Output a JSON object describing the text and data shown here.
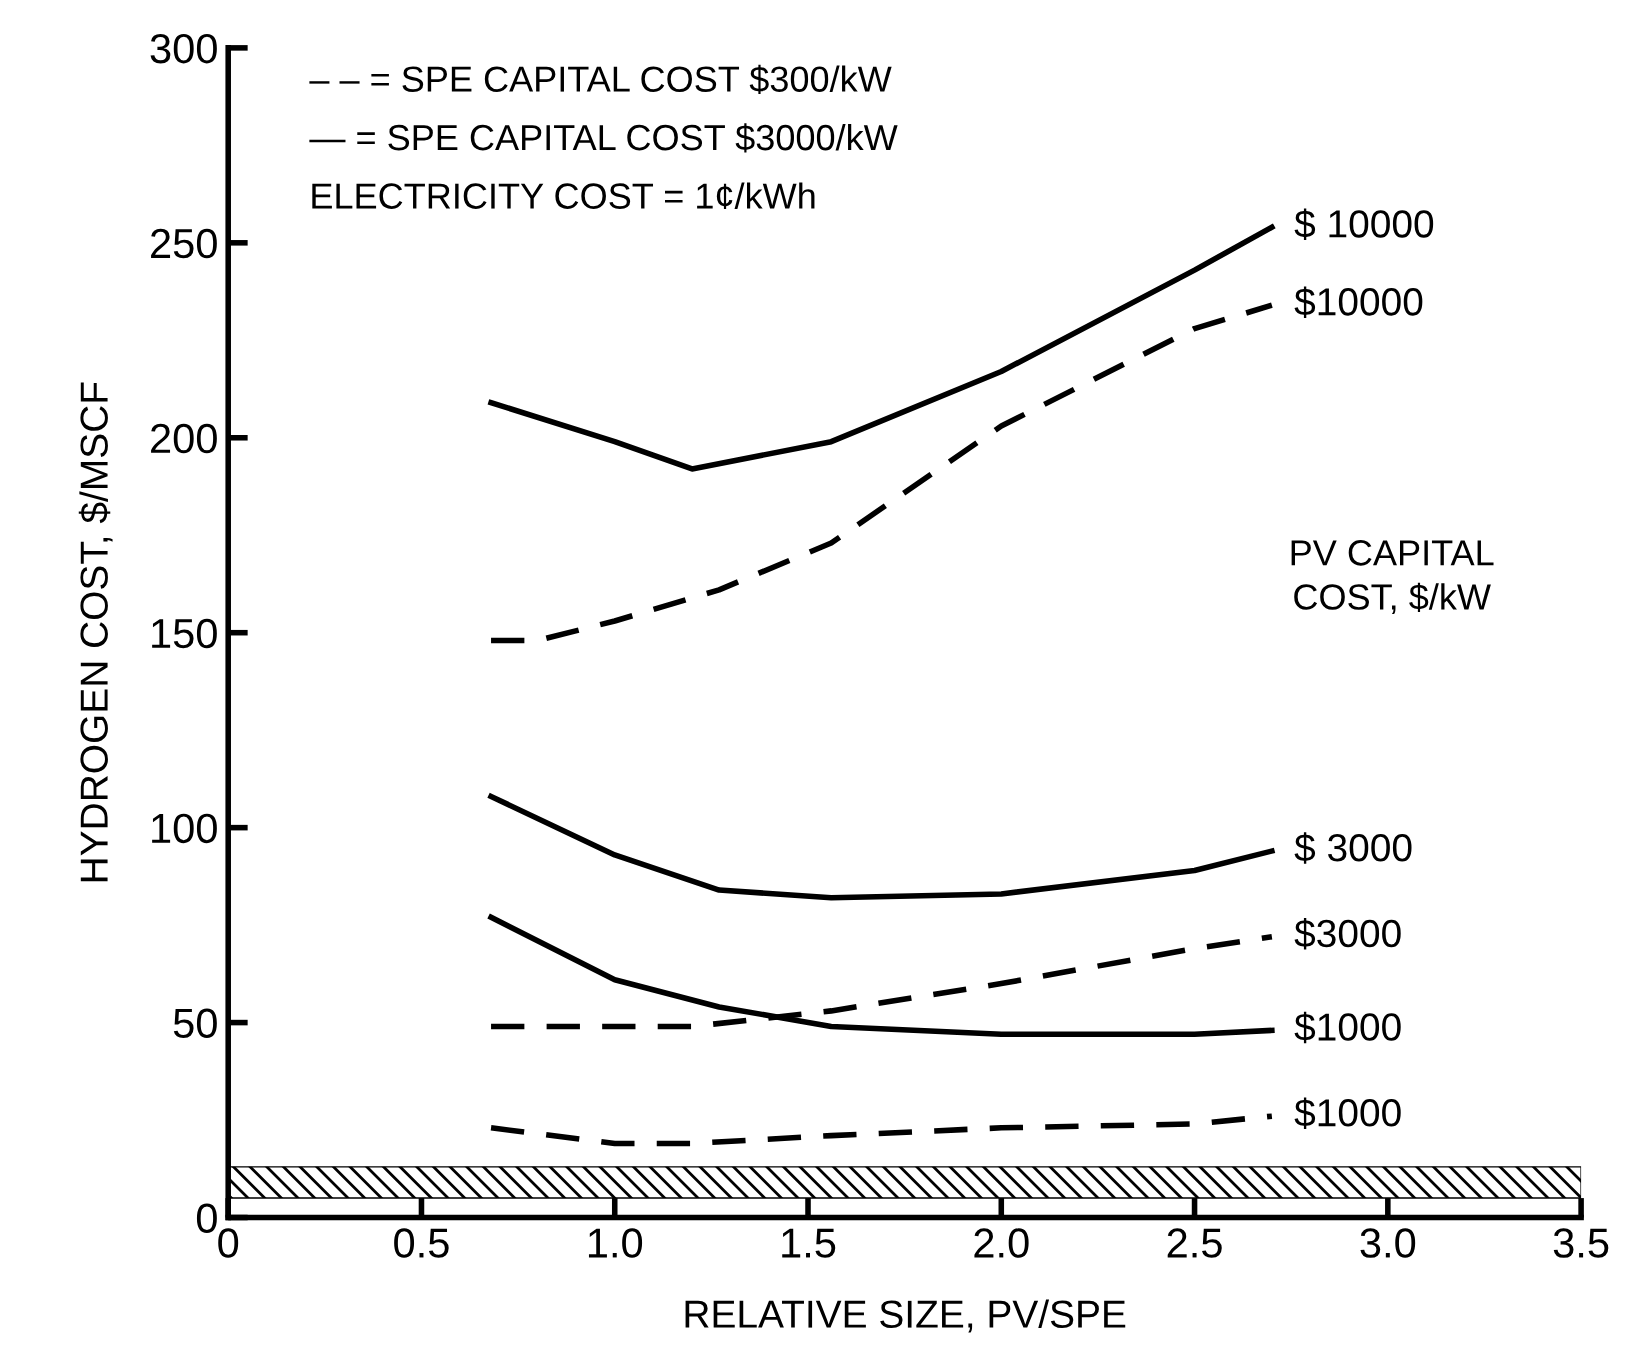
{
  "chart_data": {
    "type": "line",
    "xlabel": "RELATIVE SIZE, PV/SPE",
    "ylabel": "HYDROGEN COST, $/MSCF",
    "annotations": [
      "– – = SPE CAPITAL COST $300/kW",
      "— = SPE CAPITAL COST $3000/kW",
      "ELECTRICITY COST = 1¢/kWh",
      "PV CAPITAL\nCOST, $/kW"
    ],
    "xlim": [
      0,
      3.5
    ],
    "ylim": [
      0,
      300
    ],
    "xticks": [
      0,
      0.5,
      {
        "value": 1,
        "label": "1.0"
      },
      1.5,
      {
        "value": 2,
        "label": "2.0"
      },
      2.5,
      {
        "value": 3,
        "label": "3.0"
      },
      3.5
    ],
    "yticks": [
      0,
      50,
      100,
      150,
      200,
      250,
      300
    ],
    "grid": false,
    "legend": false,
    "series": [
      {
        "name": "$ 10000",
        "color": "#000000",
        "line_style": "solid",
        "x": [
          0.68,
          1.0,
          1.2,
          1.56,
          2.0,
          2.5,
          2.7
        ],
        "values": [
          209,
          199,
          192,
          199,
          217,
          243,
          254
        ]
      },
      {
        "name": "$10000",
        "color": "#000000",
        "line_style": "dashed",
        "x": [
          0.68,
          0.8,
          1.0,
          1.27,
          1.56,
          2.0,
          2.5,
          2.7
        ],
        "values": [
          148,
          148,
          153,
          161,
          173,
          203,
          228,
          234
        ]
      },
      {
        "name": "$ 3000",
        "color": "#000000",
        "line_style": "solid",
        "x": [
          0.68,
          1.0,
          1.27,
          1.56,
          2.0,
          2.5,
          2.7
        ],
        "values": [
          108,
          93,
          84,
          82,
          83,
          89,
          94
        ]
      },
      {
        "name": "$3000",
        "color": "#000000",
        "line_style": "dashed",
        "x": [
          0.68,
          1.2,
          1.56,
          2.0,
          2.5,
          2.7
        ],
        "values": [
          49,
          49,
          53,
          60,
          69,
          72
        ]
      },
      {
        "name": "$1000",
        "color": "#000000",
        "line_style": "solid",
        "x": [
          0.68,
          1.0,
          1.27,
          1.56,
          2.0,
          2.5,
          2.7
        ],
        "values": [
          77,
          61,
          54,
          49,
          47,
          47,
          48
        ]
      },
      {
        "name": "$1000",
        "color": "#000000",
        "line_style": "dashed",
        "x": [
          0.68,
          1.0,
          1.2,
          1.56,
          2.0,
          2.5,
          2.7
        ],
        "values": [
          23,
          19,
          19,
          21,
          23,
          24,
          26
        ]
      }
    ],
    "bands": [
      {
        "axis": "y",
        "from": 5,
        "to": 13,
        "color": "#000000"
      }
    ]
  }
}
